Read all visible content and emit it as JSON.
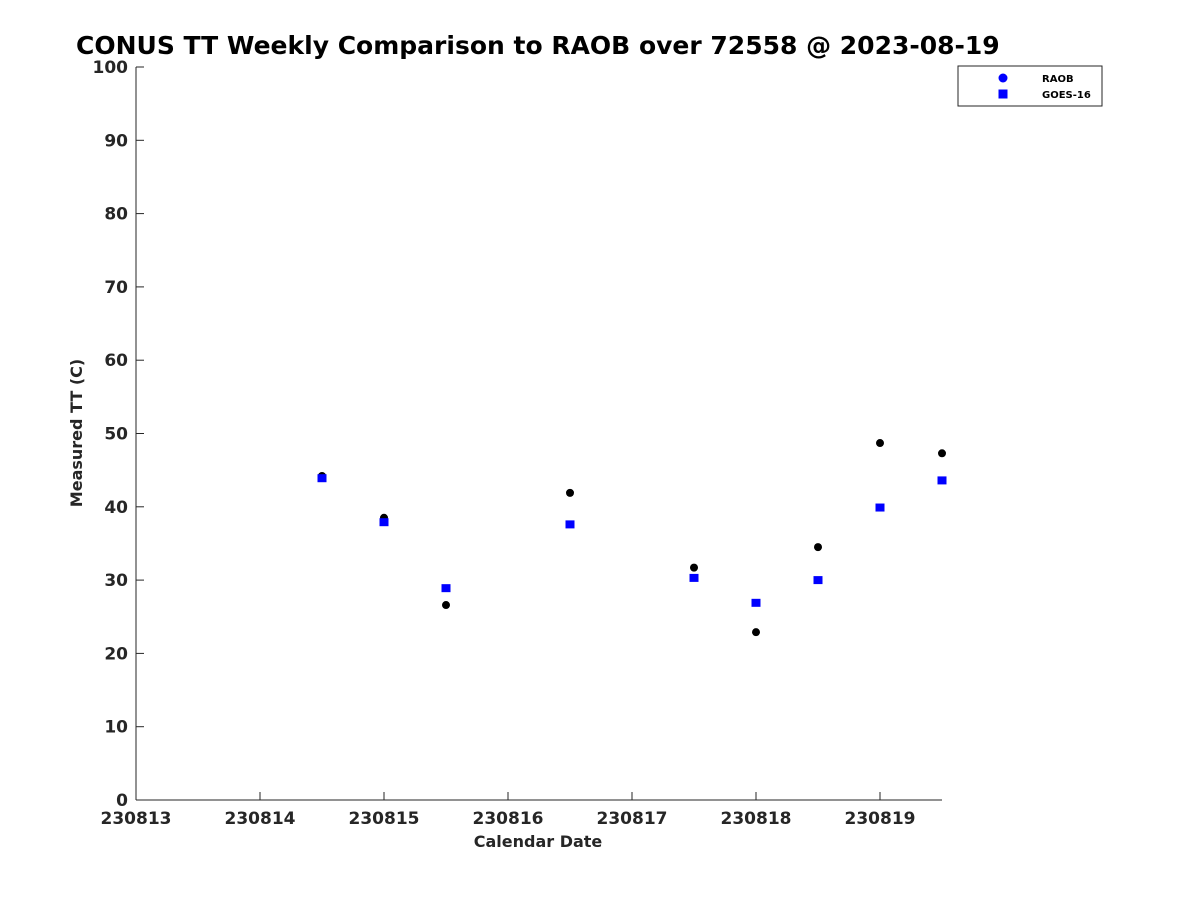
{
  "chart_data": {
    "type": "scatter",
    "title": "CONUS TT Weekly Comparison to RAOB over 72558 @ 2023-08-19",
    "xlabel": "Calendar Date",
    "ylabel": "Measured TT (C)",
    "xlim": [
      230813,
      230819.5
    ],
    "ylim": [
      0,
      100
    ],
    "x_ticks": [
      230813,
      230814,
      230815,
      230816,
      230817,
      230818,
      230819
    ],
    "x_tick_labels": [
      "230813",
      "230814",
      "230815",
      "230816",
      "230817",
      "230818",
      "230819"
    ],
    "y_ticks": [
      0,
      10,
      20,
      30,
      40,
      50,
      60,
      70,
      80,
      90,
      100
    ],
    "y_tick_labels": [
      "0",
      "10",
      "20",
      "30",
      "40",
      "50",
      "60",
      "70",
      "80",
      "90",
      "100"
    ],
    "grid": false,
    "legend_position": "top-right, outside plot",
    "series": [
      {
        "name": "RAOB",
        "marker": "circle",
        "color": "#000000",
        "legend_color": "#0000ff",
        "x": [
          230814.5,
          230815,
          230815.5,
          230816.5,
          230817.5,
          230818,
          230818.5,
          230819,
          230819.5
        ],
        "y": [
          44.2,
          38.5,
          26.6,
          41.9,
          31.7,
          22.9,
          34.5,
          48.7,
          47.3
        ]
      },
      {
        "name": "GOES-16",
        "marker": "square",
        "color": "#0000ff",
        "x": [
          230814.5,
          230815,
          230815.5,
          230816.5,
          230817.5,
          230818,
          230818.5,
          230819,
          230819.5
        ],
        "y": [
          43.9,
          37.9,
          28.9,
          37.6,
          30.3,
          26.9,
          30.0,
          39.9,
          43.6
        ]
      }
    ]
  }
}
